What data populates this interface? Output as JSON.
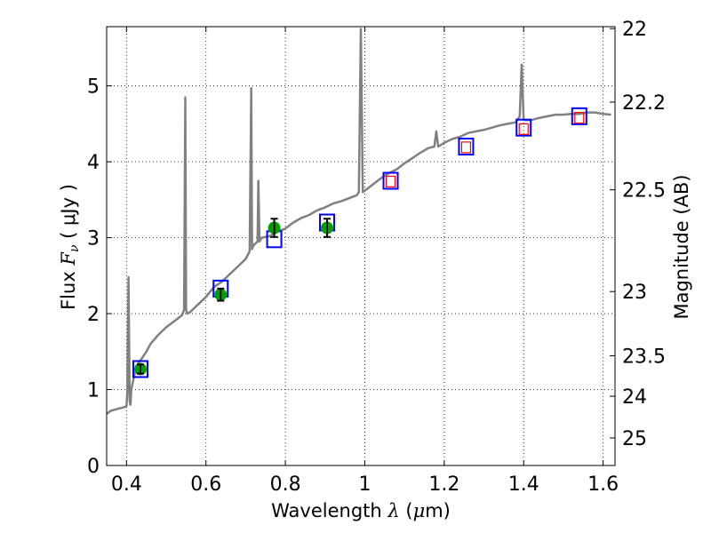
{
  "chart_data": {
    "type": "line",
    "xlabel": {
      "prefix": "Wavelength  ",
      "sym": "λ",
      "open": " (",
      "mu": "μ",
      "unit": "m)"
    },
    "ylabel": {
      "prefix": "Flux  ",
      "sym": "F",
      "sub": "ν",
      "unit": "  ( μJy )"
    },
    "y2label": "Magnitude (AB)",
    "xlim": [
      0.35,
      1.63
    ],
    "ylim": [
      0,
      5.78
    ],
    "grid": true,
    "grid_style": "dotted",
    "xticks": [
      {
        "v": 0.4,
        "label": "0.4"
      },
      {
        "v": 0.6,
        "label": "0.6"
      },
      {
        "v": 0.8,
        "label": "0.8"
      },
      {
        "v": 1.0,
        "label": "1"
      },
      {
        "v": 1.2,
        "label": "1.2"
      },
      {
        "v": 1.4,
        "label": "1.4"
      },
      {
        "v": 1.6,
        "label": "1.6"
      }
    ],
    "yticks": [
      {
        "v": 0,
        "label": "0"
      },
      {
        "v": 1,
        "label": "1"
      },
      {
        "v": 2,
        "label": "2"
      },
      {
        "v": 3,
        "label": "3"
      },
      {
        "v": 4,
        "label": "4"
      },
      {
        "v": 5,
        "label": "5"
      }
    ],
    "y2ticks": [
      {
        "mag": 22,
        "label": "22"
      },
      {
        "mag": 22.2,
        "label": "22.2"
      },
      {
        "mag": 22.5,
        "label": "22.5"
      },
      {
        "mag": 23,
        "label": "23"
      },
      {
        "mag": 23.5,
        "label": "23.5"
      },
      {
        "mag": 24,
        "label": "24"
      },
      {
        "mag": 25,
        "label": "25"
      }
    ],
    "colors": {
      "spectrum": "#808080",
      "model_box": "#0000ff",
      "phot_box": "#ff0000",
      "obs_point": "#00a000",
      "errorbar": "#000000",
      "grid": "#000000"
    },
    "spectrum": {
      "x": [
        0.35,
        0.36,
        0.38,
        0.39,
        0.4,
        0.402,
        0.405,
        0.408,
        0.41,
        0.412,
        0.42,
        0.43,
        0.44,
        0.45,
        0.46,
        0.48,
        0.5,
        0.52,
        0.54,
        0.545,
        0.548,
        0.55,
        0.553,
        0.56,
        0.58,
        0.6,
        0.62,
        0.64,
        0.66,
        0.68,
        0.7,
        0.71,
        0.714,
        0.716,
        0.72,
        0.73,
        0.732,
        0.735,
        0.74,
        0.76,
        0.78,
        0.8,
        0.82,
        0.84,
        0.86,
        0.88,
        0.9,
        0.92,
        0.94,
        0.96,
        0.98,
        0.985,
        0.99,
        0.995,
        1.0,
        1.02,
        1.04,
        1.06,
        1.08,
        1.1,
        1.12,
        1.14,
        1.16,
        1.175,
        1.18,
        1.185,
        1.2,
        1.22,
        1.24,
        1.26,
        1.28,
        1.3,
        1.32,
        1.34,
        1.36,
        1.38,
        1.39,
        1.395,
        1.4,
        1.42,
        1.44,
        1.46,
        1.48,
        1.5,
        1.52,
        1.54,
        1.56,
        1.58,
        1.6,
        1.62
      ],
      "y": [
        0.68,
        0.72,
        0.75,
        0.76,
        0.78,
        0.95,
        2.48,
        0.85,
        0.8,
        1.0,
        1.2,
        1.35,
        1.42,
        1.5,
        1.6,
        1.72,
        1.82,
        1.9,
        1.98,
        2.05,
        4.85,
        2.05,
        2.0,
        2.02,
        2.12,
        2.22,
        2.35,
        2.42,
        2.52,
        2.62,
        2.72,
        2.82,
        4.97,
        2.85,
        2.9,
        2.95,
        3.75,
        2.95,
        3.0,
        3.02,
        3.08,
        3.12,
        3.2,
        3.26,
        3.3,
        3.36,
        3.4,
        3.45,
        3.48,
        3.52,
        3.56,
        3.6,
        5.75,
        3.6,
        3.62,
        3.7,
        3.78,
        3.85,
        3.9,
        3.98,
        4.05,
        4.12,
        4.18,
        4.2,
        4.4,
        4.2,
        4.25,
        4.3,
        4.33,
        4.38,
        4.4,
        4.42,
        4.45,
        4.48,
        4.5,
        4.52,
        4.6,
        5.28,
        4.55,
        4.55,
        4.58,
        4.6,
        4.62,
        4.62,
        4.63,
        4.63,
        4.65,
        4.65,
        4.63,
        4.62
      ]
    },
    "model_boxes": [
      {
        "x": 0.435,
        "y": 1.27
      },
      {
        "x": 0.637,
        "y": 2.33
      },
      {
        "x": 0.772,
        "y": 2.98
      },
      {
        "x": 0.905,
        "y": 3.2
      },
      {
        "x": 1.065,
        "y": 3.75
      },
      {
        "x": 1.255,
        "y": 4.2
      },
      {
        "x": 1.4,
        "y": 4.45
      },
      {
        "x": 1.54,
        "y": 4.6
      }
    ],
    "phot_boxes": [
      {
        "x": 1.065,
        "y": 3.74
      },
      {
        "x": 1.255,
        "y": 4.19
      },
      {
        "x": 1.4,
        "y": 4.43
      },
      {
        "x": 1.54,
        "y": 4.58
      }
    ],
    "observations": [
      {
        "x": 0.435,
        "y": 1.27,
        "err": 0.06
      },
      {
        "x": 0.637,
        "y": 2.25,
        "err": 0.08
      },
      {
        "x": 0.772,
        "y": 3.13,
        "err": 0.12
      },
      {
        "x": 0.905,
        "y": 3.13,
        "err": 0.12
      }
    ]
  }
}
